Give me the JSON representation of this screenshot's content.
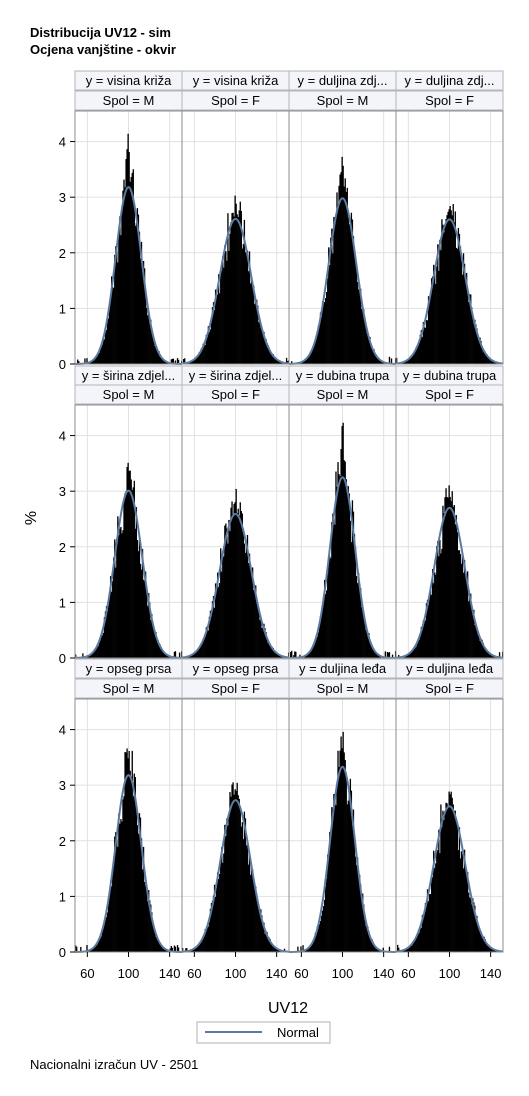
{
  "titles": {
    "line1": "Distribucija UV12 - sim",
    "line2": "Ocjena vanjštine - okvir"
  },
  "footnote": "Nacionalni izračun UV - 2501",
  "chart_data": {
    "type": "histogram-panel",
    "xlabel": "UV12",
    "ylabel": "%",
    "x_ticks": [
      60,
      100,
      140
    ],
    "xlim": [
      48,
      152
    ],
    "y_ticks": [
      0,
      1,
      2,
      3,
      4
    ],
    "ylim": [
      0,
      4.55
    ],
    "bin_width": 1,
    "grid": true,
    "legend": {
      "position": "bottom-center",
      "entries": [
        {
          "label": "Normal",
          "color": "#5a7aa1"
        }
      ]
    },
    "colors": {
      "bars": "#000000",
      "curve": "#5a7aa1",
      "grid": "#e1e1e1",
      "header_bg": "#f3f5fa",
      "frame": "#8c8c8c"
    },
    "panels": [
      {
        "row": 0,
        "col": 0,
        "y_label": "y = visina križa",
        "spol_label": "Spol = M",
        "mean": 100,
        "sd": 12.5,
        "peak": 4.33,
        "curve_peak": 3.18
      },
      {
        "row": 0,
        "col": 1,
        "y_label": "y = visina križa",
        "spol_label": "Spol = F",
        "mean": 100,
        "sd": 15.3,
        "peak": 2.96,
        "curve_peak": 2.61
      },
      {
        "row": 0,
        "col": 2,
        "y_label": "y = duljina zdj...",
        "spol_label": "Spol = M",
        "mean": 100,
        "sd": 13.4,
        "peak": 3.85,
        "curve_peak": 2.98
      },
      {
        "row": 0,
        "col": 3,
        "y_label": "y = duljina zdj...",
        "spol_label": "Spol = F",
        "mean": 100,
        "sd": 15.3,
        "peak": 3.06,
        "curve_peak": 2.6
      },
      {
        "row": 1,
        "col": 0,
        "y_label": "y = širina zdjel...",
        "spol_label": "Spol = M",
        "mean": 100,
        "sd": 13.3,
        "peak": 3.72,
        "curve_peak": 3.01
      },
      {
        "row": 1,
        "col": 1,
        "y_label": "y = širina zdjel...",
        "spol_label": "Spol = F",
        "mean": 100,
        "sd": 15.4,
        "peak": 2.9,
        "curve_peak": 2.59
      },
      {
        "row": 1,
        "col": 2,
        "y_label": "y = dubina trupa",
        "spol_label": "Spol = M",
        "mean": 100,
        "sd": 12.3,
        "peak": 4.4,
        "curve_peak": 3.25
      },
      {
        "row": 1,
        "col": 3,
        "y_label": "y = dubina trupa",
        "spol_label": "Spol = F",
        "mean": 100,
        "sd": 14.8,
        "peak": 3.16,
        "curve_peak": 2.7
      },
      {
        "row": 2,
        "col": 0,
        "y_label": "y = opseg prsa",
        "spol_label": "Spol = M",
        "mean": 100,
        "sd": 12.5,
        "peak": 3.72,
        "curve_peak": 3.18
      },
      {
        "row": 2,
        "col": 1,
        "y_label": "y = opseg prsa",
        "spol_label": "Spol = F",
        "mean": 100,
        "sd": 14.6,
        "peak": 3.22,
        "curve_peak": 2.73
      },
      {
        "row": 2,
        "col": 2,
        "y_label": "y = duljina leđa",
        "spol_label": "Spol = M",
        "mean": 100,
        "sd": 12.0,
        "peak": 4.25,
        "curve_peak": 3.33
      },
      {
        "row": 2,
        "col": 3,
        "y_label": "y = duljina leđa",
        "spol_label": "Spol = F",
        "mean": 100,
        "sd": 15.2,
        "peak": 3.06,
        "curve_peak": 2.62
      }
    ]
  }
}
